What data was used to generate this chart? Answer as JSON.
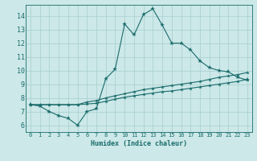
{
  "title": "",
  "xlabel": "Humidex (Indice chaleur)",
  "ylabel": "",
  "bg_color": "#cce8e8",
  "grid_color": "#a8cece",
  "line_color": "#1a6b6b",
  "xlim": [
    -0.5,
    23.5
  ],
  "ylim": [
    5.5,
    14.8
  ],
  "yticks": [
    6,
    7,
    8,
    9,
    10,
    11,
    12,
    13,
    14
  ],
  "xticks": [
    0,
    1,
    2,
    3,
    4,
    5,
    6,
    7,
    8,
    9,
    10,
    11,
    12,
    13,
    14,
    15,
    16,
    17,
    18,
    19,
    20,
    21,
    22,
    23
  ],
  "curve1_x": [
    0,
    1,
    2,
    3,
    4,
    5,
    6,
    7,
    8,
    9,
    10,
    11,
    12,
    13,
    14,
    15,
    16,
    17,
    18,
    19,
    20,
    21,
    22,
    23
  ],
  "curve1_y": [
    7.5,
    7.4,
    7.0,
    6.7,
    6.5,
    6.0,
    7.0,
    7.2,
    9.4,
    10.1,
    13.4,
    12.6,
    14.1,
    14.5,
    13.3,
    12.0,
    12.0,
    11.5,
    10.7,
    10.2,
    10.0,
    9.9,
    9.5,
    9.3
  ],
  "curve2_x": [
    0,
    1,
    2,
    3,
    4,
    5,
    6,
    7,
    8,
    9,
    10,
    11,
    12,
    13,
    14,
    15,
    16,
    17,
    18,
    19,
    20,
    21,
    22,
    23
  ],
  "curve2_y": [
    7.5,
    7.5,
    7.5,
    7.5,
    7.5,
    7.5,
    7.7,
    7.8,
    8.0,
    8.15,
    8.3,
    8.45,
    8.6,
    8.7,
    8.8,
    8.9,
    9.0,
    9.1,
    9.2,
    9.35,
    9.5,
    9.6,
    9.7,
    9.85
  ],
  "curve3_x": [
    0,
    1,
    2,
    3,
    4,
    5,
    6,
    7,
    8,
    9,
    10,
    11,
    12,
    13,
    14,
    15,
    16,
    17,
    18,
    19,
    20,
    21,
    22,
    23
  ],
  "curve3_y": [
    7.5,
    7.5,
    7.5,
    7.5,
    7.5,
    7.5,
    7.55,
    7.6,
    7.75,
    7.9,
    8.05,
    8.15,
    8.25,
    8.35,
    8.45,
    8.5,
    8.6,
    8.7,
    8.8,
    8.9,
    9.0,
    9.1,
    9.2,
    9.35
  ]
}
